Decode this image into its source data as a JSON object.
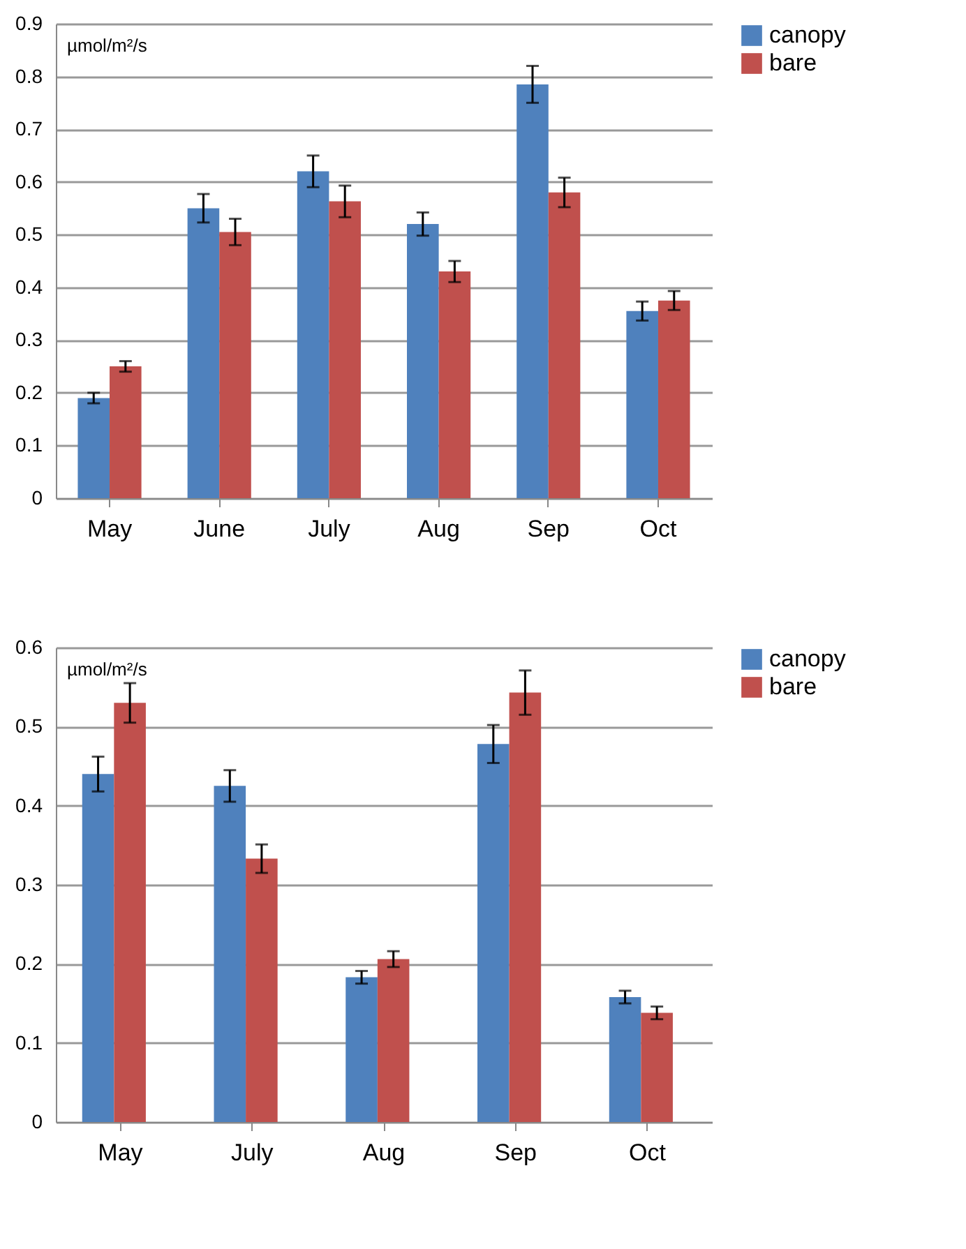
{
  "chart_data": [
    {
      "type": "bar",
      "ylabel": "µmol/m²/s",
      "categories": [
        "May",
        "June",
        "July",
        "Aug",
        "Sep",
        "Oct"
      ],
      "ylim": [
        0,
        0.9
      ],
      "yticks": [
        0,
        0.1,
        0.2,
        0.3,
        0.4,
        0.5,
        0.6,
        0.7,
        0.8,
        0.9
      ],
      "grid": "y",
      "legend": "right",
      "series": [
        {
          "name": "canopy",
          "color": "#4f81bd",
          "values": [
            0.19,
            0.55,
            0.62,
            0.52,
            0.785,
            0.355
          ],
          "errors": [
            0.01,
            0.027,
            0.03,
            0.022,
            0.035,
            0.018
          ]
        },
        {
          "name": "bare",
          "color": "#c0504d",
          "values": [
            0.25,
            0.505,
            0.563,
            0.43,
            0.58,
            0.375
          ],
          "errors": [
            0.01,
            0.025,
            0.03,
            0.02,
            0.028,
            0.018
          ]
        }
      ]
    },
    {
      "type": "bar",
      "ylabel": "µmol/m²/s",
      "categories": [
        "May",
        "July",
        "Aug",
        "Sep",
        "Oct"
      ],
      "ylim": [
        0,
        0.6
      ],
      "yticks": [
        0,
        0.1,
        0.2,
        0.3,
        0.4,
        0.5,
        0.6
      ],
      "grid": "y",
      "legend": "right",
      "series": [
        {
          "name": "canopy",
          "color": "#4f81bd",
          "values": [
            0.44,
            0.425,
            0.183,
            0.478,
            0.158
          ],
          "errors": [
            0.022,
            0.02,
            0.008,
            0.024,
            0.008
          ]
        },
        {
          "name": "bare",
          "color": "#c0504d",
          "values": [
            0.53,
            0.333,
            0.206,
            0.543,
            0.138
          ],
          "errors": [
            0.025,
            0.018,
            0.01,
            0.028,
            0.008
          ]
        }
      ]
    }
  ]
}
